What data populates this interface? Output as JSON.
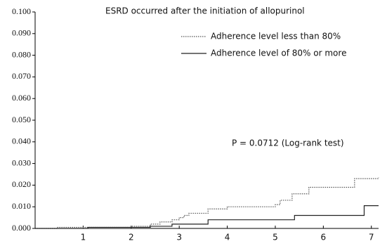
{
  "chart_data": {
    "type": "step",
    "title": "ESRD occurred after the initiation of allopurinol",
    "annotation": "P = 0.0712 (Log-rank test)",
    "xlim": [
      0,
      7.15
    ],
    "xticks": [
      1,
      2,
      3,
      4,
      5,
      6,
      7
    ],
    "ylim": [
      0,
      0.1
    ],
    "yticks": [
      {
        "value": 0,
        "label": "0.000"
      },
      {
        "value": 0.01,
        "label": "0.010"
      },
      {
        "value": 0.02,
        "label": "0.020"
      },
      {
        "value": 0.03,
        "label": "0.030"
      },
      {
        "value": 0.04,
        "label": "0.040"
      },
      {
        "value": 0.05,
        "label": "0.050"
      },
      {
        "value": 0.06,
        "label": "0.060"
      },
      {
        "value": 0.07,
        "label": "0.070"
      },
      {
        "value": 0.08,
        "label": "0.080"
      },
      {
        "value": 0.09,
        "label": "0.090"
      },
      {
        "value": 0.1,
        "label": "0.100"
      }
    ],
    "series": [
      {
        "name": "Adherence level less than 80%",
        "color": "#555555",
        "dash": "dotted",
        "x": [
          0,
          0.47,
          2.0,
          2.4,
          2.6,
          2.85,
          3.0,
          3.1,
          3.2,
          3.6,
          4.0,
          5.0,
          5.1,
          5.35,
          5.7,
          6.65,
          7.15
        ],
        "values": [
          0,
          0.0005,
          0.001,
          0.002,
          0.003,
          0.004,
          0.005,
          0.006,
          0.007,
          0.009,
          0.01,
          0.011,
          0.013,
          0.016,
          0.019,
          0.023,
          0.0235
        ]
      },
      {
        "name": "Adherence level of 80% or more",
        "color": "#222222",
        "dash": "solid",
        "x": [
          0,
          1.1,
          2.4,
          2.85,
          3.6,
          5.4,
          6.85,
          7.15
        ],
        "values": [
          0,
          0.0005,
          0.001,
          0.002,
          0.004,
          0.006,
          0.0105,
          0.0105
        ]
      }
    ]
  }
}
